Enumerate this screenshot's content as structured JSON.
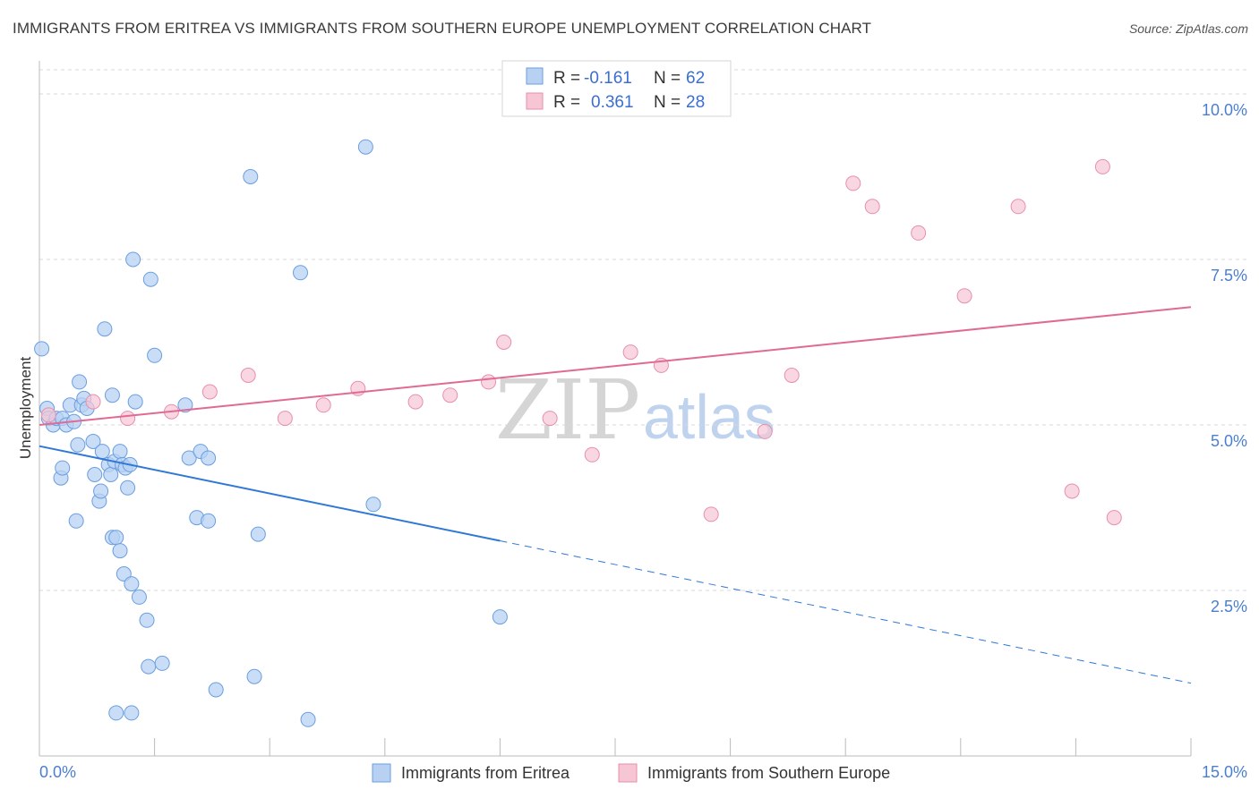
{
  "title": "IMMIGRANTS FROM ERITREA VS IMMIGRANTS FROM SOUTHERN EUROPE UNEMPLOYMENT CORRELATION CHART",
  "source": "Source: ZipAtlas.com",
  "watermark": {
    "zip": "ZIP",
    "atlas": "atlas"
  },
  "legend_box": {
    "rows": [
      {
        "r_label": "R =",
        "r_value": "-0.161",
        "n_label": "N =",
        "n_value": "62"
      },
      {
        "r_label": "R =",
        "r_value": "0.361",
        "n_label": "N =",
        "n_value": "28"
      }
    ]
  },
  "colors": {
    "eritrea_fill": "#b8d1f3",
    "eritrea_stroke": "#6a9ee0",
    "eritrea_line": "#2f78d6",
    "seurope_fill": "#f7c6d5",
    "seurope_stroke": "#e88fab",
    "seurope_line": "#e06a94",
    "axis_text": "#4a7fd0",
    "grid": "#d8d8d8"
  },
  "chart_data": {
    "type": "scatter",
    "title": "IMMIGRANTS FROM ERITREA VS IMMIGRANTS FROM SOUTHERN EUROPE UNEMPLOYMENT CORRELATION CHART",
    "xlabel": "",
    "ylabel": "Unemployment",
    "xlim": [
      0,
      15
    ],
    "ylim": [
      0,
      10.5
    ],
    "x_tick_labels": [
      "0.0%",
      "15.0%"
    ],
    "y_ticks": [
      2.5,
      5.0,
      7.5,
      10.0
    ],
    "y_tick_labels": [
      "2.5%",
      "5.0%",
      "7.5%",
      "10.0%"
    ],
    "grid": true,
    "legend": [
      "Immigrants from Eritrea",
      "Immigrants from Southern Europe"
    ],
    "series": [
      {
        "name": "Immigrants from Eritrea",
        "r": -0.161,
        "n": 62,
        "trend": {
          "x0": 0.0,
          "y0": 4.68,
          "x1": 6.0,
          "y1": 3.25,
          "dash_to_x": 15.0,
          "dash_to_y": 1.1
        },
        "points": [
          [
            0.03,
            6.15
          ],
          [
            0.1,
            5.25
          ],
          [
            0.12,
            5.1
          ],
          [
            0.18,
            5.0
          ],
          [
            0.22,
            5.1
          ],
          [
            0.3,
            5.1
          ],
          [
            0.35,
            5.0
          ],
          [
            0.4,
            5.3
          ],
          [
            0.45,
            5.05
          ],
          [
            0.5,
            4.7
          ],
          [
            0.52,
            5.65
          ],
          [
            0.55,
            5.3
          ],
          [
            0.58,
            5.4
          ],
          [
            0.62,
            5.25
          ],
          [
            0.7,
            4.75
          ],
          [
            0.72,
            4.25
          ],
          [
            0.78,
            3.85
          ],
          [
            0.8,
            4.0
          ],
          [
            0.82,
            4.6
          ],
          [
            0.85,
            6.45
          ],
          [
            0.9,
            4.4
          ],
          [
            0.93,
            4.25
          ],
          [
            0.95,
            5.45
          ],
          [
            0.98,
            4.45
          ],
          [
            1.05,
            4.6
          ],
          [
            1.08,
            4.4
          ],
          [
            1.12,
            4.35
          ],
          [
            1.15,
            4.05
          ],
          [
            1.18,
            4.4
          ],
          [
            1.22,
            7.5
          ],
          [
            1.25,
            5.35
          ],
          [
            0.95,
            3.3
          ],
          [
            0.28,
            4.2
          ],
          [
            0.3,
            4.35
          ],
          [
            0.48,
            3.55
          ],
          [
            1.0,
            3.3
          ],
          [
            1.05,
            3.1
          ],
          [
            1.1,
            2.75
          ],
          [
            1.2,
            2.6
          ],
          [
            1.3,
            2.4
          ],
          [
            1.4,
            2.05
          ],
          [
            1.42,
            1.35
          ],
          [
            1.6,
            1.4
          ],
          [
            1.95,
            4.5
          ],
          [
            2.1,
            4.6
          ],
          [
            2.2,
            4.5
          ],
          [
            2.05,
            3.6
          ],
          [
            2.2,
            3.55
          ],
          [
            2.3,
            1.0
          ],
          [
            2.75,
            8.75
          ],
          [
            2.85,
            3.35
          ],
          [
            3.4,
            7.3
          ],
          [
            3.5,
            0.55
          ],
          [
            4.25,
            9.2
          ],
          [
            4.35,
            3.8
          ],
          [
            6.0,
            2.1
          ],
          [
            1.2,
            0.65
          ],
          [
            1.0,
            0.65
          ],
          [
            1.45,
            7.2
          ],
          [
            1.5,
            6.05
          ],
          [
            1.9,
            5.3
          ],
          [
            2.8,
            1.2
          ]
        ]
      },
      {
        "name": "Immigrants from Southern Europe",
        "r": 0.361,
        "n": 28,
        "trend": {
          "x0": 0.0,
          "y0": 5.0,
          "x1": 15.0,
          "y1": 6.78
        },
        "points": [
          [
            0.12,
            5.15
          ],
          [
            0.7,
            5.35
          ],
          [
            1.15,
            5.1
          ],
          [
            1.72,
            5.2
          ],
          [
            2.22,
            5.5
          ],
          [
            2.72,
            5.75
          ],
          [
            3.2,
            5.1
          ],
          [
            3.7,
            5.3
          ],
          [
            4.15,
            5.55
          ],
          [
            4.9,
            5.35
          ],
          [
            5.35,
            5.45
          ],
          [
            5.85,
            5.65
          ],
          [
            6.05,
            6.25
          ],
          [
            6.65,
            5.1
          ],
          [
            7.2,
            4.55
          ],
          [
            7.7,
            6.1
          ],
          [
            8.1,
            5.9
          ],
          [
            8.75,
            3.65
          ],
          [
            9.45,
            4.9
          ],
          [
            9.8,
            5.75
          ],
          [
            10.6,
            8.65
          ],
          [
            10.85,
            8.3
          ],
          [
            11.45,
            7.9
          ],
          [
            12.05,
            6.95
          ],
          [
            12.75,
            8.3
          ],
          [
            13.45,
            4.0
          ],
          [
            13.85,
            8.9
          ],
          [
            14.0,
            3.6
          ]
        ]
      }
    ]
  }
}
